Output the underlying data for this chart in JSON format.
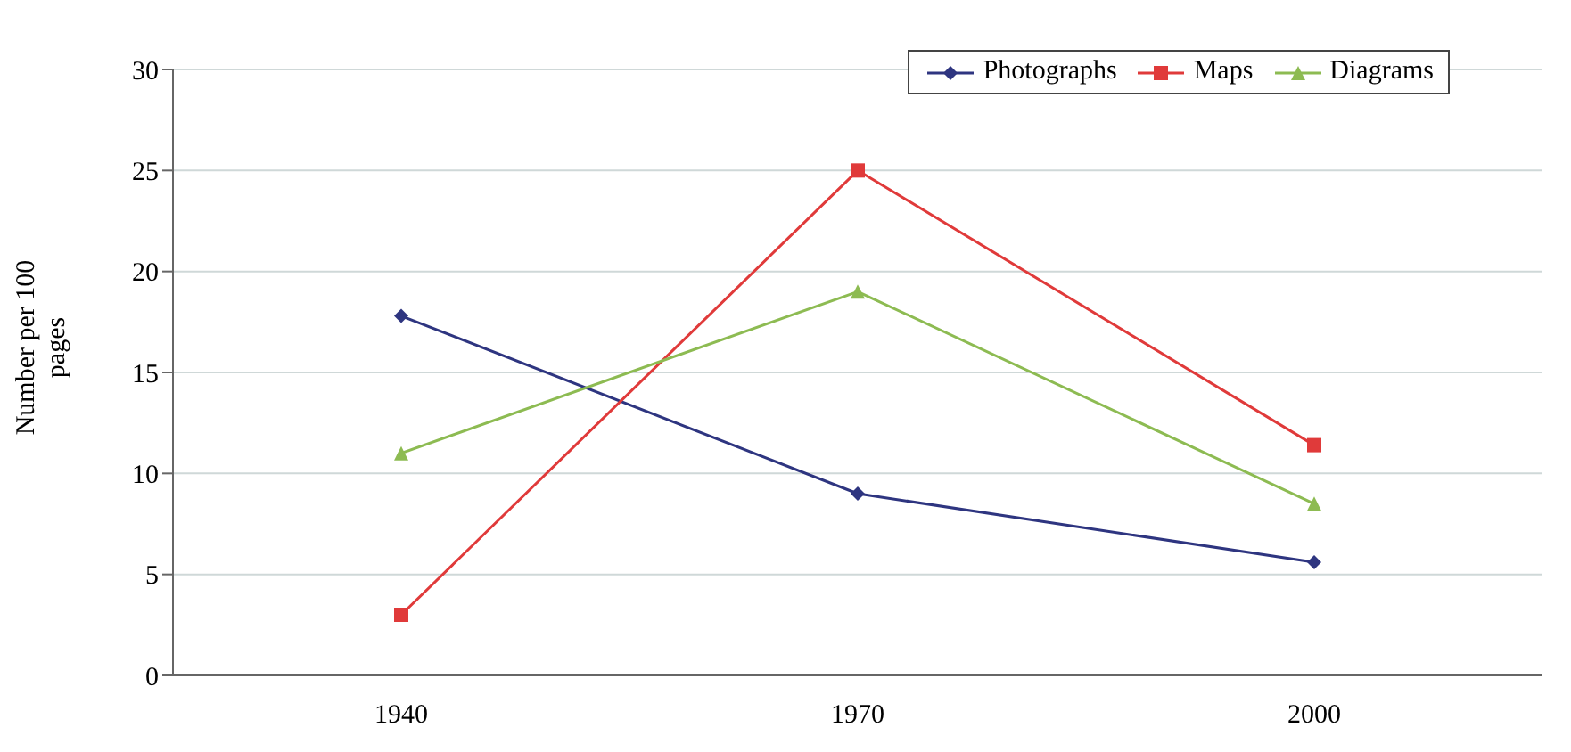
{
  "chart_data": {
    "type": "line",
    "ylabel": "Number per 100 pages",
    "categories": [
      "1940",
      "1970",
      "2000"
    ],
    "series": [
      {
        "name": "Photographs",
        "color": "#2e3580",
        "values": [
          17.8,
          9,
          5.6
        ],
        "marker": "diamond"
      },
      {
        "name": "Maps",
        "color": "#e03a3a",
        "values": [
          3,
          25,
          11.4
        ],
        "marker": "square"
      },
      {
        "name": "Diagrams",
        "color": "#8dbb52",
        "values": [
          11,
          19,
          8.5
        ],
        "marker": "triangle"
      }
    ],
    "ylim": [
      0,
      30
    ],
    "yticks": [
      0,
      5,
      10,
      15,
      20,
      25,
      30
    ],
    "grid": "y",
    "legend": "top right",
    "line_style": "solid"
  }
}
